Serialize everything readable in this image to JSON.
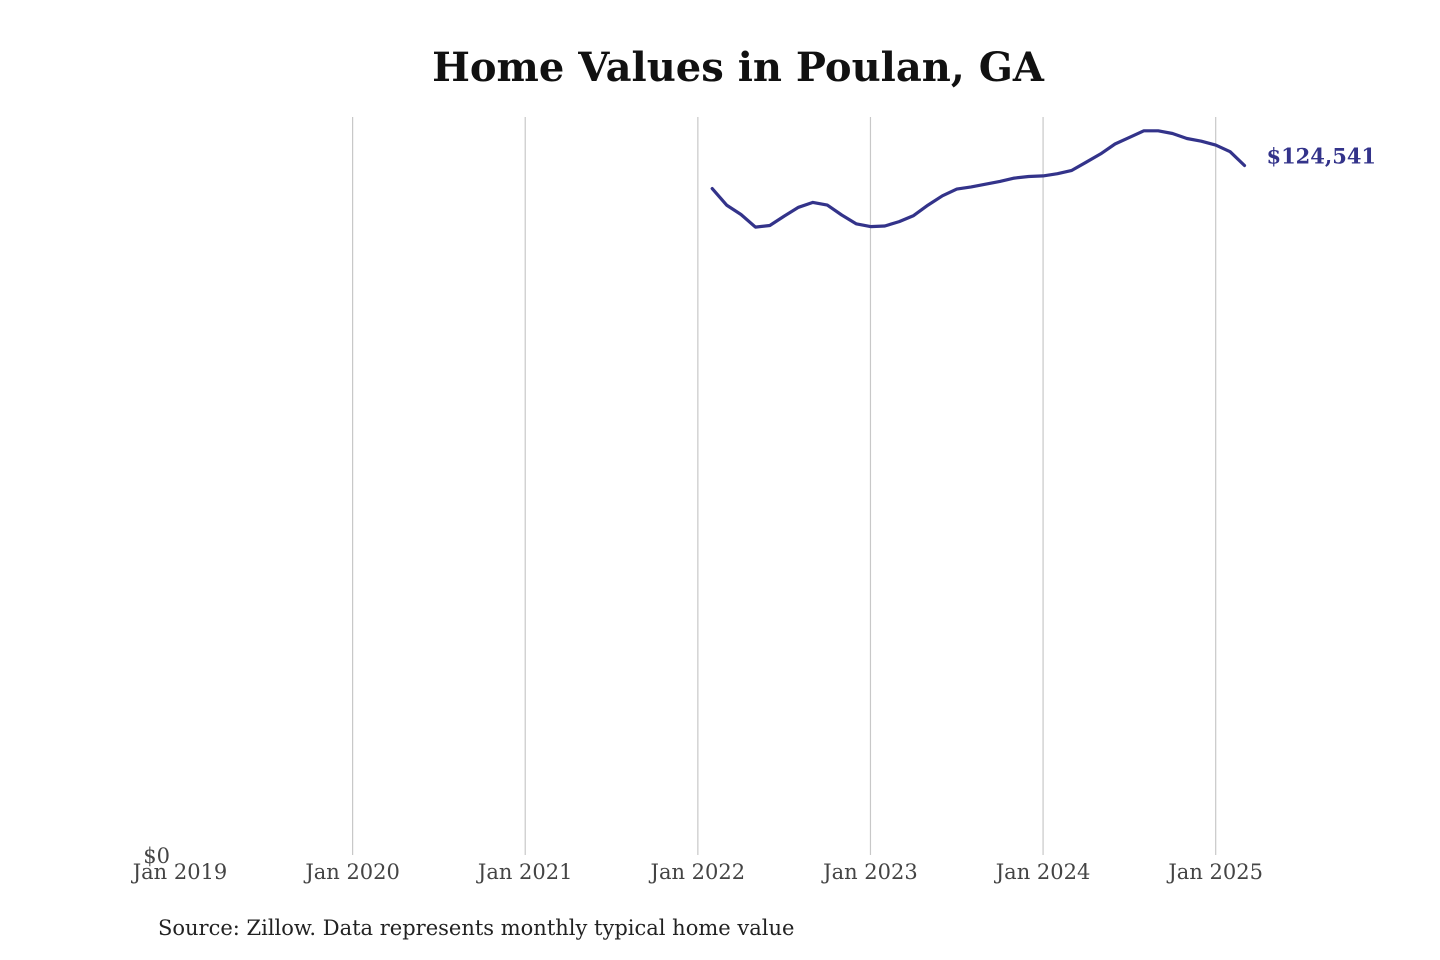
{
  "chart_data": {
    "type": "line",
    "title": "Home Values in Poulan, GA",
    "source": "Source: Zillow. Data represents monthly typical home value",
    "xlabel": "",
    "ylabel": "",
    "x_ticks": [
      "Jan 2019",
      "Jan 2020",
      "Jan 2021",
      "Jan 2022",
      "Jan 2023",
      "Jan 2024",
      "Jan 2025"
    ],
    "y_ticks": [
      "$0"
    ],
    "ylim": [
      0,
      134000
    ],
    "xlim": [
      "2019-01",
      "2025-07"
    ],
    "grid": "vertical",
    "line_color": "#33338a",
    "end_label": "$124,541",
    "series": [
      {
        "x": [
          "2022-02",
          "2022-03",
          "2022-04",
          "2022-05",
          "2022-06",
          "2022-07",
          "2022-08",
          "2022-09",
          "2022-10",
          "2022-11",
          "2022-12",
          "2023-01",
          "2023-02",
          "2023-03",
          "2023-04",
          "2023-05",
          "2023-06",
          "2023-07",
          "2023-08",
          "2023-09",
          "2023-10",
          "2023-11",
          "2023-12",
          "2024-01",
          "2024-02",
          "2024-03",
          "2024-04",
          "2024-05",
          "2024-06",
          "2024-07",
          "2024-08",
          "2024-09",
          "2024-10",
          "2024-11",
          "2024-12",
          "2025-01",
          "2025-02",
          "2025-03"
        ],
        "values": [
          121000,
          118000,
          116300,
          114000,
          114300,
          116000,
          117600,
          118500,
          118000,
          116200,
          114600,
          114100,
          114200,
          115000,
          116100,
          118000,
          119700,
          120900,
          121300,
          121800,
          122300,
          122900,
          123200,
          123300,
          123700,
          124300,
          125800,
          127300,
          129100,
          130300,
          131500,
          131500,
          131000,
          130100,
          129600,
          128900,
          127700,
          125200
        ]
      }
    ]
  }
}
